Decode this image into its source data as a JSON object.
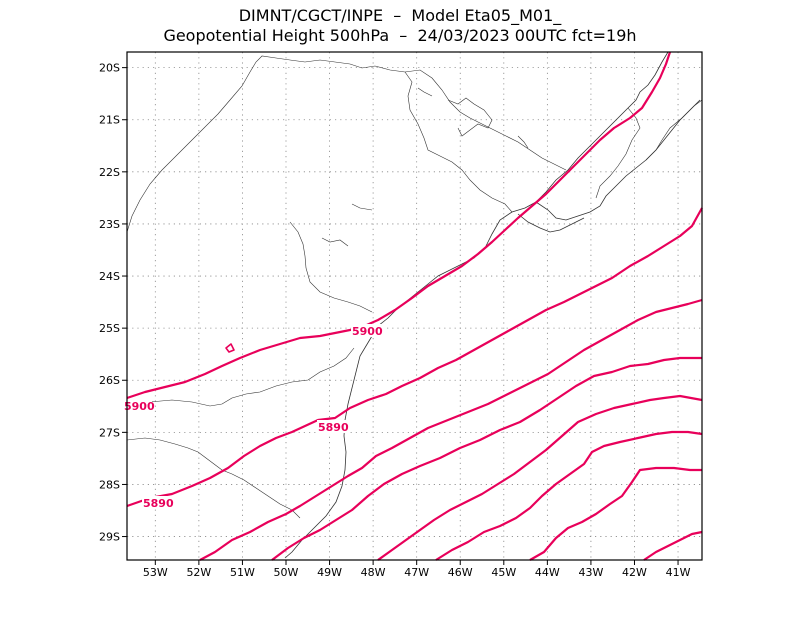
{
  "header": {
    "line1": "DIMNT/CGCT/INPE  –  Model Eta05_M01_",
    "line2": "Geopotential Height 500hPa  –  24/03/2023 00UTC fct=19h"
  },
  "map": {
    "lon_range": [
      -53.65,
      -40.45
    ],
    "lat_range": [
      -29.45,
      -19.7
    ],
    "lat_labels": [
      "20S",
      "21S",
      "22S",
      "23S",
      "24S",
      "25S",
      "26S",
      "27S",
      "28S",
      "29S"
    ],
    "lon_labels": [
      "53W",
      "52W",
      "51W",
      "50W",
      "49W",
      "48W",
      "47W",
      "46W",
      "45W",
      "44W",
      "43W",
      "42W",
      "41W"
    ],
    "contour_labels": [
      "5900",
      "5900",
      "5890",
      "5890"
    ],
    "contour_color": "#e8005a"
  }
}
